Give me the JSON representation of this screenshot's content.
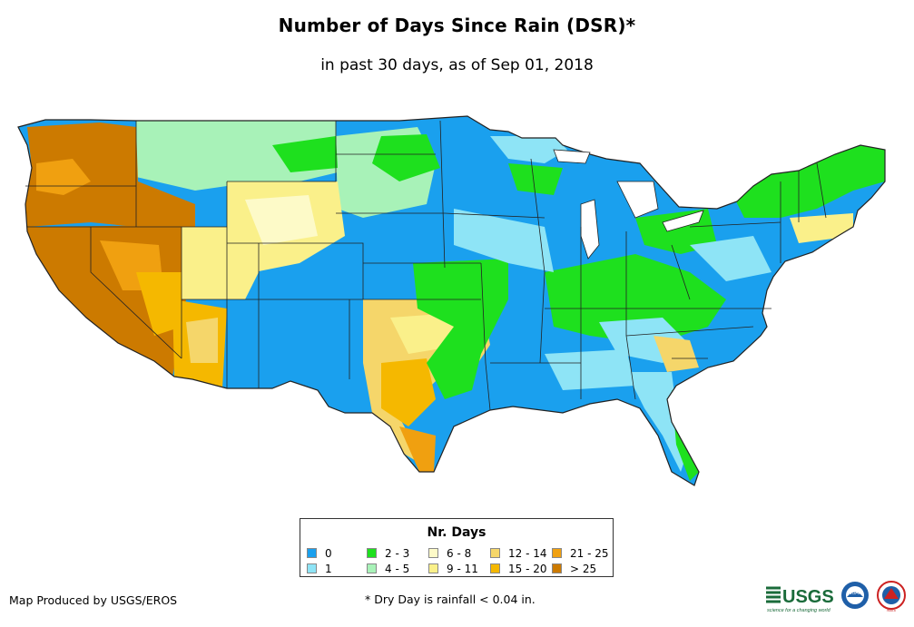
{
  "title": "Number of Days Since Rain (DSR)*",
  "subtitle": "in past 30 days, as of Sep 01, 2018",
  "legend": {
    "title": "Nr. Days",
    "items": [
      {
        "label": "0",
        "color": "#1aa0ee"
      },
      {
        "label": "1",
        "color": "#8ee4f6"
      },
      {
        "label": "2 - 3",
        "color": "#1ee01e"
      },
      {
        "label": "4 - 5",
        "color": "#a8f2b8"
      },
      {
        "label": "6 - 8",
        "color": "#fdfac8"
      },
      {
        "label": "9 - 11",
        "color": "#faf08a"
      },
      {
        "label": "12 - 14",
        "color": "#f5d66a"
      },
      {
        "label": "15 - 20",
        "color": "#f5b800"
      },
      {
        "label": "21 - 25",
        "color": "#f0a010"
      },
      {
        "label": "> 25",
        "color": "#cc7a00"
      }
    ]
  },
  "credit": "Map Produced by USGS/EROS",
  "footnote": "* Dry Day is rainfall < 0.04 in.",
  "logos": {
    "usgs": {
      "text": "USGS",
      "tagline": "science for a changing world",
      "color": "#1a6b3a"
    },
    "noaa": {
      "text": "NOAA",
      "color": "#1f5fa8"
    },
    "nws": {
      "text": "NWS",
      "color": "#cc2222"
    }
  }
}
